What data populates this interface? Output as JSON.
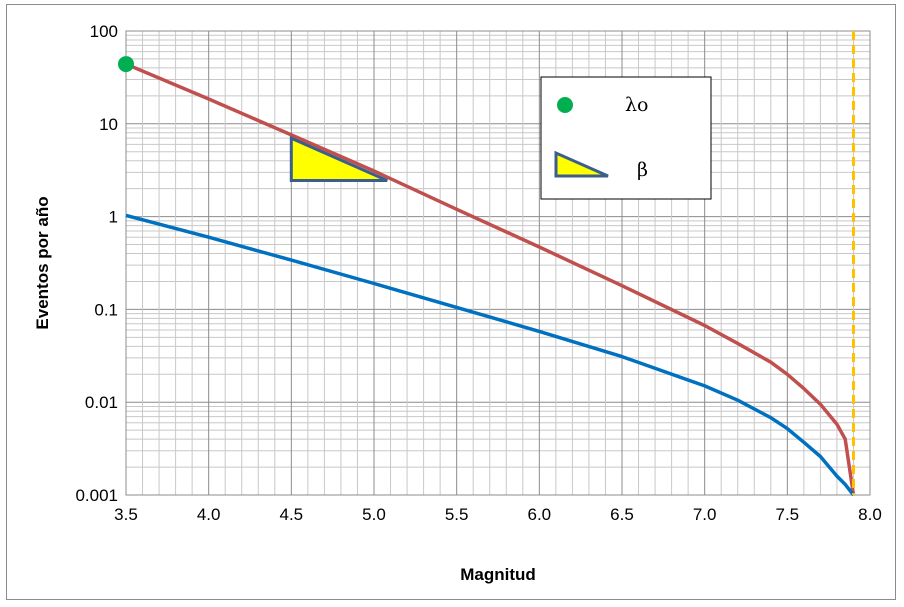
{
  "chart_data": {
    "type": "line",
    "xlabel": "Magnitud",
    "ylabel": "Eventos por año",
    "xlim": [
      3.5,
      8.0
    ],
    "ylim": [
      0.001,
      100
    ],
    "y_scale": "log",
    "x_ticks": [
      "3.5",
      "4.0",
      "4.5",
      "5.0",
      "5.5",
      "6.0",
      "6.5",
      "7.0",
      "7.5",
      "8.0"
    ],
    "y_ticks": [
      {
        "value": 100,
        "label": "100"
      },
      {
        "value": 10,
        "label": "10"
      },
      {
        "value": 1,
        "label": "1"
      },
      {
        "value": 0.1,
        "label": "0.1"
      },
      {
        "value": 0.01,
        "label": "0.01"
      },
      {
        "value": 0.001,
        "label": "0.001"
      }
    ],
    "grid": true,
    "series": [
      {
        "color": "#c0504d",
        "x": [
          3.5,
          4.0,
          4.5,
          5.0,
          5.5,
          6.0,
          6.5,
          7.0,
          7.2,
          7.4,
          7.5,
          7.6,
          7.7,
          7.8,
          7.85,
          7.9
        ],
        "values": [
          44,
          18.5,
          7.6,
          3.1,
          1.2,
          0.47,
          0.18,
          0.067,
          0.043,
          0.027,
          0.02,
          0.014,
          0.0095,
          0.0058,
          0.004,
          0.001
        ]
      },
      {
        "color": "#0070c0",
        "x": [
          3.5,
          4.0,
          4.5,
          5.0,
          5.5,
          6.0,
          6.5,
          7.0,
          7.2,
          7.4,
          7.5,
          7.6,
          7.7,
          7.8,
          7.85,
          7.9
        ],
        "values": [
          1.03,
          0.6,
          0.34,
          0.19,
          0.105,
          0.058,
          0.031,
          0.015,
          0.0105,
          0.0068,
          0.0052,
          0.0037,
          0.0026,
          0.0016,
          0.0013,
          0.001
        ]
      }
    ],
    "markers": {
      "lambda_point": {
        "x": 3.5,
        "y": 44,
        "color": "#00b050"
      },
      "vertical_line": {
        "x": 7.9,
        "color": "#ffc000",
        "style": "dashed"
      },
      "beta_triangle": {
        "x": [
          4.5,
          5.08
        ],
        "y_top": 7.0,
        "y_bottom": 2.45,
        "fill": "#ffff00",
        "stroke": "#3a5f8c"
      }
    },
    "legend": {
      "placement": "top-right",
      "items": [
        {
          "marker": "green-dot",
          "label": "λo"
        },
        {
          "marker": "yellow-triangle",
          "label": "β"
        }
      ]
    }
  }
}
